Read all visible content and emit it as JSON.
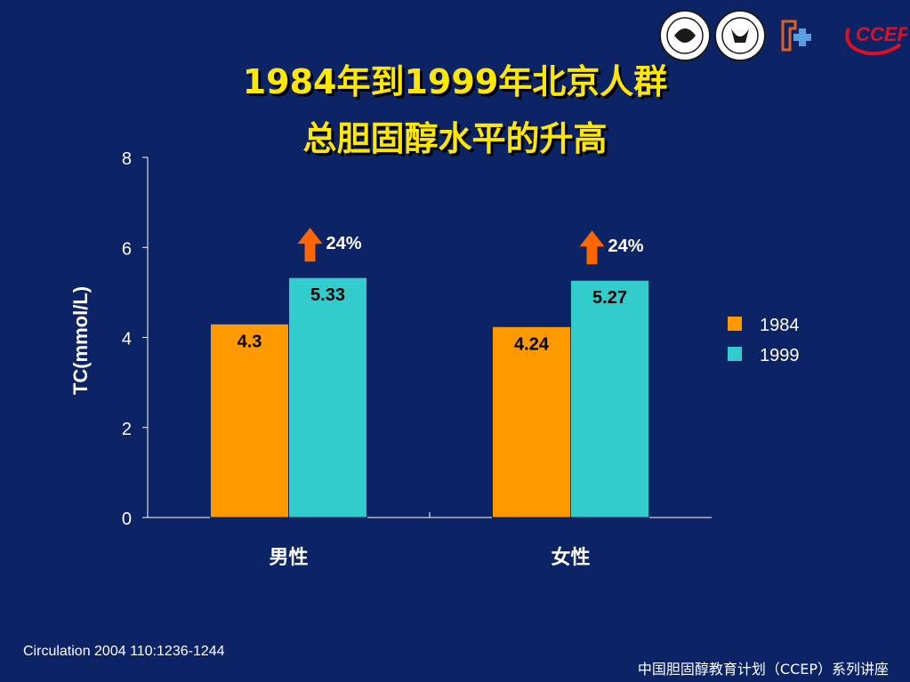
{
  "slide": {
    "title_line1": "1984年到1999年北京人群",
    "title_line2": "总胆固醇水平的升高",
    "citation": "Circulation 2004   110:1236-1244",
    "footer": "中国胆固醇教育计划（CCEP）系列讲座"
  },
  "logos": [
    {
      "name": "seal-logo-1"
    },
    {
      "name": "seal-logo-2"
    },
    {
      "name": "cross-logo"
    },
    {
      "name": "ccep-logo",
      "text": "CCEP"
    }
  ],
  "chart_data": {
    "type": "bar",
    "categories": [
      "男性",
      "女性"
    ],
    "series": [
      {
        "name": "1984",
        "values": [
          4.3,
          4.24
        ],
        "labels": [
          "4.3",
          "4.24"
        ],
        "color": "#ff9900"
      },
      {
        "name": "1999",
        "values": [
          5.33,
          5.27
        ],
        "labels": [
          "5.33",
          "5.27"
        ],
        "color": "#33cccc"
      }
    ],
    "ylabel": "TC(mmol/L)",
    "ylim": [
      0,
      8
    ],
    "yticks": [
      "0",
      "2",
      "4",
      "6",
      "8"
    ],
    "annotations": [
      {
        "category": "男性",
        "text": "24%",
        "arrow": "up",
        "color": "#ff6600"
      },
      {
        "category": "女性",
        "text": "24%",
        "arrow": "up",
        "color": "#ff6600"
      }
    ],
    "legend_position": "right",
    "grid": false
  }
}
